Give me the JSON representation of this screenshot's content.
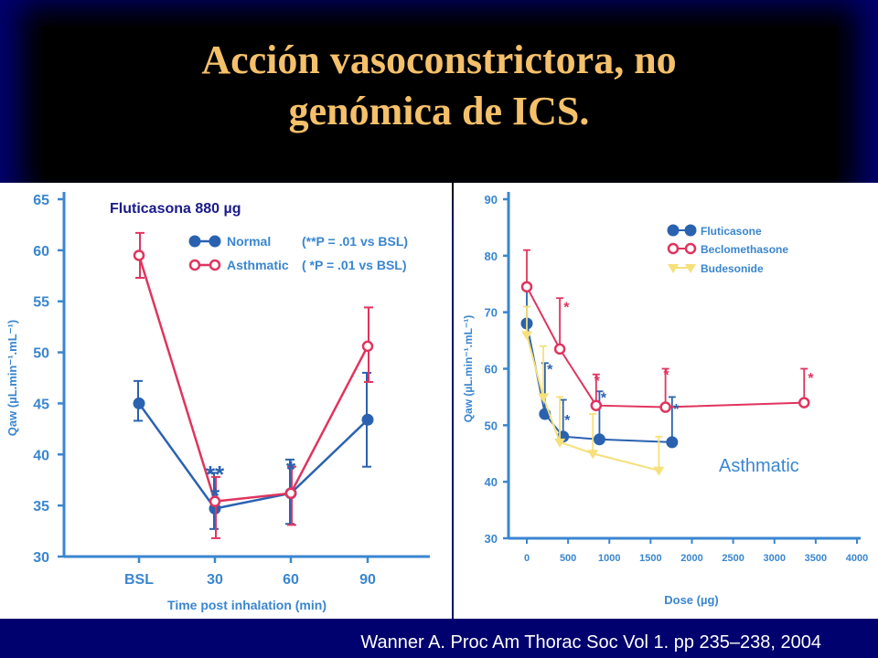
{
  "slide": {
    "title_line1": "Acción vasoconstrictora, no",
    "title_line2": "genómica de ICS.",
    "citation": "Wanner A. Proc Am Thorac Soc Vol 1. pp 235–238, 2004",
    "colors": {
      "background": "#00006e",
      "title": "#f5c06a",
      "title_box": "#000000"
    }
  },
  "chart_data": [
    {
      "type": "line",
      "annotation": "Fluticasona 880 µg",
      "xlabel": "Time post inhalation (min)",
      "ylabel": "Qaw (µL.min⁻¹.mL⁻¹)",
      "ylim": [
        30,
        65
      ],
      "yticks": [
        30,
        35,
        40,
        45,
        50,
        55,
        60,
        65
      ],
      "categories": [
        "BSL",
        "30",
        "60",
        "90"
      ],
      "legend": "top-right",
      "series": [
        {
          "name": "Normal",
          "note": "(**P = .01 vs BSL)",
          "color": "#2a62b0",
          "marker": "filled",
          "values": [
            45,
            34.7,
            36.2,
            43.4
          ],
          "err_upper": [
            47.2,
            38.2,
            39.5,
            48.0
          ],
          "err_lower": [
            43.3,
            32.7,
            33.2,
            38.8
          ]
        },
        {
          "name": "Asthmatic",
          "note": "( *P = .01 vs BSL)",
          "color": "#e0345e",
          "marker": "open",
          "values": [
            59.5,
            35.4,
            36.2,
            50.6
          ],
          "err_upper": [
            61.7,
            37.8,
            38.8,
            54.4
          ],
          "err_lower": [
            57.3,
            31.8,
            33.1,
            47.1
          ]
        }
      ],
      "significance": [
        {
          "x": "30",
          "y": 38.5,
          "text": "**",
          "color": "#2a62b0"
        },
        {
          "x": "30",
          "y": 36.4,
          "text": "*",
          "color": "#2a62b0"
        },
        {
          "x": "60",
          "y": 39.0,
          "text": "*",
          "color": "#2a62b0"
        }
      ]
    },
    {
      "type": "line",
      "annotation": "Asthmatic",
      "xlabel": "Dose (µg)",
      "ylabel": "Qaw (µL.min⁻¹.mL⁻¹)",
      "ylim": [
        30,
        90
      ],
      "xlim": [
        0,
        4000
      ],
      "yticks": [
        30,
        40,
        50,
        60,
        70,
        80,
        90
      ],
      "xticks": [
        0,
        500,
        1000,
        1500,
        2000,
        2500,
        3000,
        3500,
        4000
      ],
      "legend": "top-right",
      "series": [
        {
          "name": "Fluticasone",
          "color": "#2a62b0",
          "marker": "filled",
          "x": [
            0,
            220,
            440,
            880,
            1760
          ],
          "y": [
            68,
            52,
            48,
            47.5,
            47
          ],
          "err_upper": [
            75,
            61,
            54.5,
            56,
            55
          ]
        },
        {
          "name": "Beclomethasone",
          "color": "#e0345e",
          "marker": "open",
          "x": [
            0,
            400,
            840,
            1680,
            3360
          ],
          "y": [
            74.5,
            63.5,
            53.5,
            53.2,
            54
          ],
          "err_upper": [
            81,
            72.5,
            59,
            60,
            60
          ]
        },
        {
          "name": "Budesonide",
          "color": "#f5e07a",
          "marker": "triangle",
          "x": [
            0,
            200,
            400,
            800,
            1600
          ],
          "y": [
            66,
            55,
            47,
            45,
            42
          ],
          "err_upper": [
            71,
            64,
            55,
            52,
            48
          ]
        }
      ],
      "significance": [
        {
          "x": 280,
          "y": 60,
          "text": "*",
          "color": "#2a62b0"
        },
        {
          "x": 490,
          "y": 51,
          "text": "*",
          "color": "#2a62b0"
        },
        {
          "x": 930,
          "y": 55,
          "text": "*",
          "color": "#2a62b0"
        },
        {
          "x": 1810,
          "y": 53,
          "text": "*",
          "color": "#2a62b0"
        },
        {
          "x": 480,
          "y": 71,
          "text": "*",
          "color": "#e0345e"
        },
        {
          "x": 850,
          "y": 58,
          "text": "*",
          "color": "#e0345e"
        },
        {
          "x": 1690,
          "y": 59,
          "text": "*",
          "color": "#e0345e"
        },
        {
          "x": 3440,
          "y": 58.5,
          "text": "*",
          "color": "#e0345e"
        }
      ]
    }
  ]
}
